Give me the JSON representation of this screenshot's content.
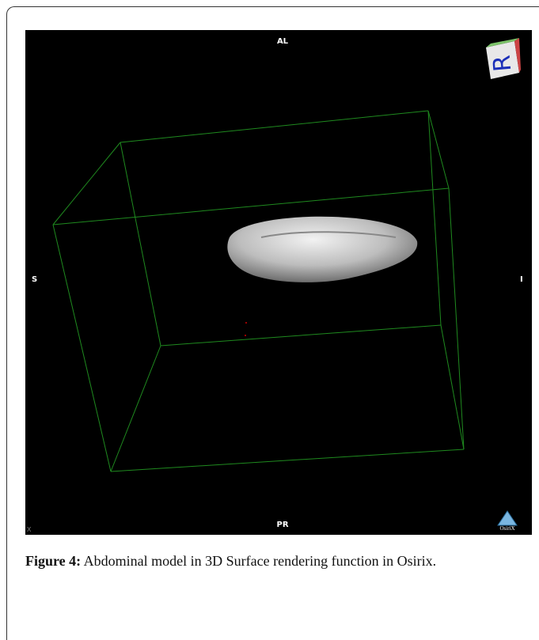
{
  "figure": {
    "labels": {
      "top": "AL",
      "left": "S",
      "right": "I",
      "bottom": "PR",
      "corner": "X"
    },
    "orientation_cube": "R",
    "logo": "OsiriX",
    "caption": {
      "label": "Figure 4:",
      "text": "Abdominal model in 3D Surface rendering function in Osirix."
    }
  }
}
